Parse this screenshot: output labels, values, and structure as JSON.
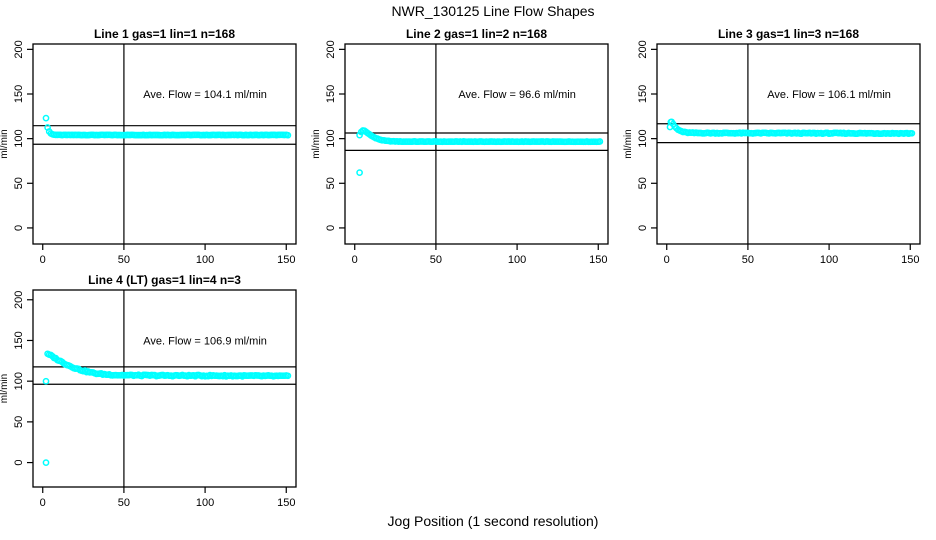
{
  "page": {
    "title": "NWR_130125  Line Flow Shapes",
    "xlabel": "Jog Position (1 second resolution)",
    "background_color": "#FFFFFF",
    "axis_color": "#000000",
    "marker_color": "#00FFFF"
  },
  "chart_data": [
    {
      "type": "scatter",
      "title": "Line 1 gas=1 lin=1 n=168",
      "annotation": "Ave. Flow =  104.1  ml/min",
      "ave_flow": 104.1,
      "n": 168,
      "ylabel": "ml/min",
      "xticks": [
        0,
        50,
        100,
        150
      ],
      "yticks": [
        0,
        50,
        100,
        150,
        200
      ],
      "xlim": [
        -6,
        156
      ],
      "ylim": [
        -18,
        206
      ],
      "vline_x": 50,
      "hlines": [
        114.5,
        93.7
      ],
      "annotation_pos": [
        100,
        150
      ],
      "outliers": [
        [
          2,
          123
        ]
      ],
      "curve": [
        [
          3,
          112.5
        ],
        [
          4,
          108
        ],
        [
          5,
          105.8
        ],
        [
          6,
          104.8
        ],
        [
          8,
          104.3
        ],
        [
          10,
          104.1
        ],
        [
          151,
          104.1
        ]
      ],
      "x_end": 151,
      "noise": 0.2,
      "marker_color": "#00FFFF"
    },
    {
      "type": "scatter",
      "title": "Line 2 gas=1 lin=2 n=168",
      "annotation": "Ave. Flow =  96.6  ml/min",
      "ave_flow": 96.6,
      "n": 168,
      "ylabel": "ml/min",
      "xticks": [
        0,
        50,
        100,
        150
      ],
      "yticks": [
        0,
        50,
        100,
        150,
        200
      ],
      "xlim": [
        -6,
        156
      ],
      "ylim": [
        -18,
        206
      ],
      "vline_x": 50,
      "hlines": [
        106.3,
        86.9
      ],
      "annotation_pos": [
        100,
        150
      ],
      "outliers": [
        [
          3,
          62
        ],
        [
          3,
          104
        ]
      ],
      "curve": [
        [
          4,
          107.5
        ],
        [
          5,
          109
        ],
        [
          6,
          108.8
        ],
        [
          7,
          107.5
        ],
        [
          9,
          105
        ],
        [
          11,
          102.5
        ],
        [
          13,
          100.5
        ],
        [
          16,
          98.6
        ],
        [
          19,
          97.6
        ],
        [
          23,
          97
        ],
        [
          30,
          96.7
        ],
        [
          151,
          96.6
        ]
      ],
      "x_end": 151,
      "noise": 0.2,
      "marker_color": "#00FFFF"
    },
    {
      "type": "scatter",
      "title": "Line 3 gas=1 lin=3 n=168",
      "annotation": "Ave. Flow =  106.1  ml/min",
      "ave_flow": 106.1,
      "n": 168,
      "ylabel": "ml/min",
      "xticks": [
        0,
        50,
        100,
        150
      ],
      "yticks": [
        0,
        50,
        100,
        150,
        200
      ],
      "xlim": [
        -6,
        156
      ],
      "ylim": [
        -18,
        206
      ],
      "vline_x": 50,
      "hlines": [
        116.7,
        95.5
      ],
      "annotation_pos": [
        100,
        150
      ],
      "outliers": [
        [
          2,
          113
        ],
        [
          2.5,
          118.5
        ]
      ],
      "curve": [
        [
          3,
          119
        ],
        [
          4,
          116
        ],
        [
          5,
          113.5
        ],
        [
          6,
          111.5
        ],
        [
          7,
          110
        ],
        [
          8,
          109
        ],
        [
          10,
          107.6
        ],
        [
          12,
          106.9
        ],
        [
          15,
          106.5
        ],
        [
          20,
          106.3
        ],
        [
          40,
          106.2
        ],
        [
          151,
          105.9
        ]
      ],
      "x_end": 151,
      "noise": 0.5,
      "marker_color": "#00FFFF"
    },
    {
      "type": "scatter",
      "title": "Line 4 (LT) gas=1 lin=4 n=3",
      "annotation": "Ave. Flow =  106.9  ml/min",
      "ave_flow": 106.9,
      "n": 3,
      "ylabel": "ml/min",
      "xticks": [
        0,
        50,
        100,
        150
      ],
      "yticks": [
        0,
        50,
        100,
        150,
        200
      ],
      "xlim": [
        -6,
        156
      ],
      "ylim": [
        -30,
        212
      ],
      "vline_x": 50,
      "hlines": [
        117.6,
        96.2
      ],
      "annotation_pos": [
        100,
        150
      ],
      "outliers": [
        [
          2,
          0
        ],
        [
          2,
          100
        ]
      ],
      "curve": [
        [
          3,
          133
        ],
        [
          4,
          132.5
        ],
        [
          5,
          131.5
        ],
        [
          6,
          130.3
        ],
        [
          8,
          127.8
        ],
        [
          10,
          125.5
        ],
        [
          12,
          123.3
        ],
        [
          14,
          121.2
        ],
        [
          16,
          119.3
        ],
        [
          18,
          117.6
        ],
        [
          20,
          116
        ],
        [
          23,
          114
        ],
        [
          26,
          112.3
        ],
        [
          29,
          110.9
        ],
        [
          32,
          109.8
        ],
        [
          35,
          109
        ],
        [
          38,
          108.4
        ],
        [
          42,
          107.9
        ],
        [
          46,
          107.5
        ],
        [
          50,
          107.3
        ],
        [
          60,
          107.1
        ],
        [
          80,
          106.9
        ],
        [
          100,
          106.8
        ],
        [
          120,
          106.6
        ],
        [
          151,
          106.2
        ]
      ],
      "x_end": 151,
      "noise": 0.8,
      "marker_color": "#00FFFF"
    }
  ]
}
